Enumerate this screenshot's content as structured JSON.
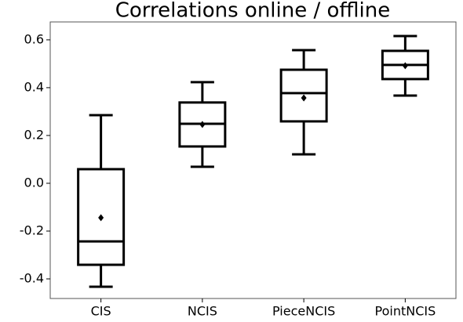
{
  "chart_data": {
    "type": "box",
    "title": "Correlations online / offline",
    "categories": [
      "CIS",
      "NCIS",
      "PieceNCIS",
      "PointNCIS"
    ],
    "boxes": [
      {
        "whislo": -0.433,
        "q1": -0.341,
        "med": -0.243,
        "q3": 0.059,
        "whishi": 0.285,
        "mean": -0.144
      },
      {
        "whislo": 0.069,
        "q1": 0.154,
        "med": 0.249,
        "q3": 0.338,
        "whishi": 0.423,
        "mean": 0.246
      },
      {
        "whislo": 0.121,
        "q1": 0.259,
        "med": 0.377,
        "q3": 0.475,
        "whishi": 0.557,
        "mean": 0.357
      },
      {
        "whislo": 0.367,
        "q1": 0.436,
        "med": 0.495,
        "q3": 0.554,
        "whishi": 0.616,
        "mean": 0.492
      }
    ],
    "color": "#000000",
    "ylim": [
      -0.482,
      0.675
    ],
    "yticks": [
      -0.4,
      -0.2,
      {
        "value": 0,
        "label": "0.0"
      },
      0.2,
      0.4,
      0.6
    ]
  }
}
